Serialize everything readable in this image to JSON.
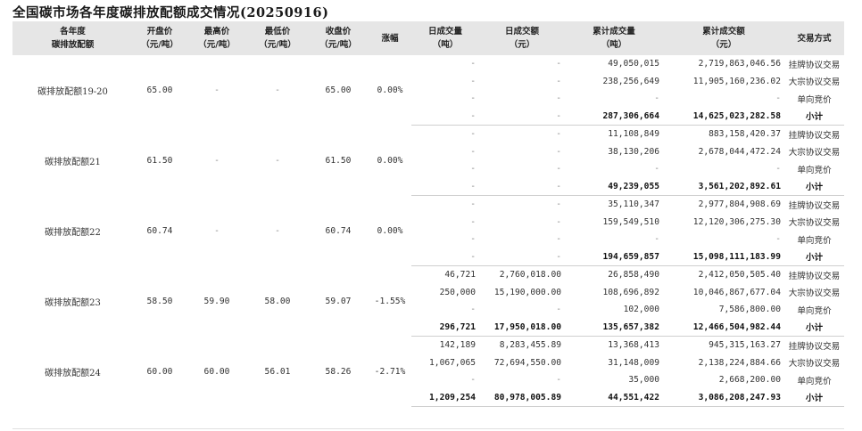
{
  "title": "全国碳市场各年度碳排放配额成交情况(20250916)",
  "columns": [
    "各年度\n碳排放配额",
    "开盘价\n（元/吨）",
    "最高价\n（元/吨）",
    "最低价\n（元/吨）",
    "收盘价\n（元/吨）",
    "涨幅",
    "日成交量\n（吨）",
    "日成交额\n（元）",
    "累计成交量\n（吨）",
    "累计成交额\n（元）",
    "交易方式"
  ],
  "groups": [
    {
      "name": "碳排放配额19-20",
      "open": "65.00",
      "high": "-",
      "low": "-",
      "close": "65.00",
      "change": "0.00%",
      "rows": [
        {
          "day_vol": "-",
          "day_amt": "-",
          "cum_vol": "49,050,015",
          "cum_amt": "2,719,863,046.56",
          "method": "挂牌协议交易"
        },
        {
          "day_vol": "-",
          "day_amt": "-",
          "cum_vol": "238,256,649",
          "cum_amt": "11,905,160,236.02",
          "method": "大宗协议交易"
        },
        {
          "day_vol": "-",
          "day_amt": "-",
          "cum_vol": "-",
          "cum_amt": "-",
          "method": "单向竞价"
        },
        {
          "day_vol": "-",
          "day_amt": "-",
          "cum_vol": "287,306,664",
          "cum_amt": "14,625,023,282.58",
          "method": "小计"
        }
      ]
    },
    {
      "name": "碳排放配额21",
      "open": "61.50",
      "high": "-",
      "low": "-",
      "close": "61.50",
      "change": "0.00%",
      "rows": [
        {
          "day_vol": "-",
          "day_amt": "-",
          "cum_vol": "11,108,849",
          "cum_amt": "883,158,420.37",
          "method": "挂牌协议交易"
        },
        {
          "day_vol": "-",
          "day_amt": "-",
          "cum_vol": "38,130,206",
          "cum_amt": "2,678,044,472.24",
          "method": "大宗协议交易"
        },
        {
          "day_vol": "-",
          "day_amt": "-",
          "cum_vol": "-",
          "cum_amt": "-",
          "method": "单向竞价"
        },
        {
          "day_vol": "-",
          "day_amt": "-",
          "cum_vol": "49,239,055",
          "cum_amt": "3,561,202,892.61",
          "method": "小计"
        }
      ]
    },
    {
      "name": "碳排放配额22",
      "open": "60.74",
      "high": "-",
      "low": "-",
      "close": "60.74",
      "change": "0.00%",
      "rows": [
        {
          "day_vol": "-",
          "day_amt": "-",
          "cum_vol": "35,110,347",
          "cum_amt": "2,977,804,908.69",
          "method": "挂牌协议交易"
        },
        {
          "day_vol": "-",
          "day_amt": "-",
          "cum_vol": "159,549,510",
          "cum_amt": "12,120,306,275.30",
          "method": "大宗协议交易"
        },
        {
          "day_vol": "-",
          "day_amt": "-",
          "cum_vol": "-",
          "cum_amt": "-",
          "method": "单向竞价"
        },
        {
          "day_vol": "-",
          "day_amt": "-",
          "cum_vol": "194,659,857",
          "cum_amt": "15,098,111,183.99",
          "method": "小计"
        }
      ]
    },
    {
      "name": "碳排放配额23",
      "open": "58.50",
      "high": "59.90",
      "low": "58.00",
      "close": "59.07",
      "change": "-1.55%",
      "rows": [
        {
          "day_vol": "46,721",
          "day_amt": "2,760,018.00",
          "cum_vol": "26,858,490",
          "cum_amt": "2,412,050,505.40",
          "method": "挂牌协议交易"
        },
        {
          "day_vol": "250,000",
          "day_amt": "15,190,000.00",
          "cum_vol": "108,696,892",
          "cum_amt": "10,046,867,677.04",
          "method": "大宗协议交易"
        },
        {
          "day_vol": "-",
          "day_amt": "-",
          "cum_vol": "102,000",
          "cum_amt": "7,586,800.00",
          "method": "单向竞价"
        },
        {
          "day_vol": "296,721",
          "day_amt": "17,950,018.00",
          "cum_vol": "135,657,382",
          "cum_amt": "12,466,504,982.44",
          "method": "小计"
        }
      ]
    },
    {
      "name": "碳排放配额24",
      "open": "60.00",
      "high": "60.00",
      "low": "56.01",
      "close": "58.26",
      "change": "-2.71%",
      "rows": [
        {
          "day_vol": "142,189",
          "day_amt": "8,283,455.89",
          "cum_vol": "13,368,413",
          "cum_amt": "945,315,163.27",
          "method": "挂牌协议交易"
        },
        {
          "day_vol": "1,067,065",
          "day_amt": "72,694,550.00",
          "cum_vol": "31,148,009",
          "cum_amt": "2,138,224,884.66",
          "method": "大宗协议交易"
        },
        {
          "day_vol": "-",
          "day_amt": "-",
          "cum_vol": "35,000",
          "cum_amt": "2,668,200.00",
          "method": "单向竞价"
        },
        {
          "day_vol": "1,209,254",
          "day_amt": "80,978,005.89",
          "cum_vol": "44,551,422",
          "cum_amt": "3,086,208,247.93",
          "method": "小计"
        }
      ]
    }
  ]
}
